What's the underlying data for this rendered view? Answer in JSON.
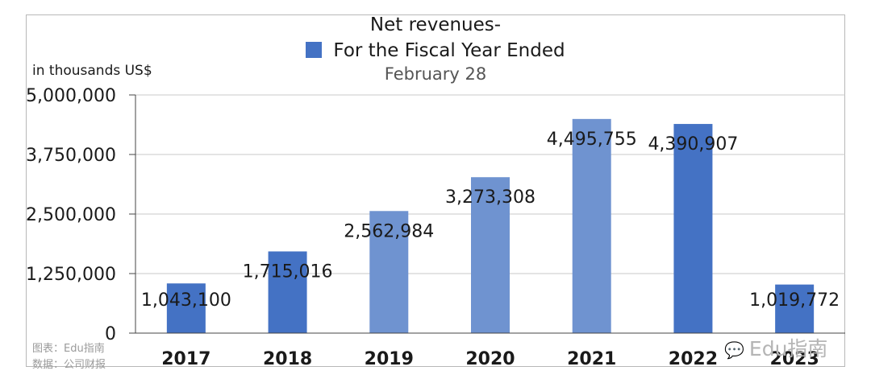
{
  "chart_data": {
    "type": "bar",
    "title": "Net revenues-",
    "subtitle": "February 28",
    "ylabel": "in thousands US$",
    "xlabel": "",
    "categories": [
      "2017",
      "2018",
      "2019",
      "2020",
      "2021",
      "2022",
      "2023"
    ],
    "series": [
      {
        "name": "For the Fiscal Year Ended",
        "values": [
          1043100,
          1715016,
          2562984,
          3273308,
          4495755,
          4390907,
          1019772
        ]
      }
    ],
    "data_labels": [
      "1,043,100",
      "1,715,016",
      "2,562,984",
      "3,273,308",
      "4,495,755",
      "4,390,907",
      "1,019,772"
    ],
    "yticks": [
      0,
      1250000,
      2500000,
      3750000,
      5000000
    ],
    "ytick_labels": [
      "0",
      "1,250,000",
      "2,500,000",
      "3,750,000",
      "5,000,000"
    ],
    "ylim": [
      0,
      5000000
    ],
    "grid": true,
    "legend_position": "top-center",
    "colors": {
      "bar": "#4472c4",
      "bar_light": "#6f93d0",
      "grid": "#c8c8c8"
    },
    "light_bars": [
      2,
      3,
      4
    ]
  },
  "footer": {
    "chart_credit": "图表：Edu指南",
    "data_credit": "数据：公司财报"
  },
  "watermark": {
    "icon": "wechat-icon",
    "text": "Edu指南"
  }
}
